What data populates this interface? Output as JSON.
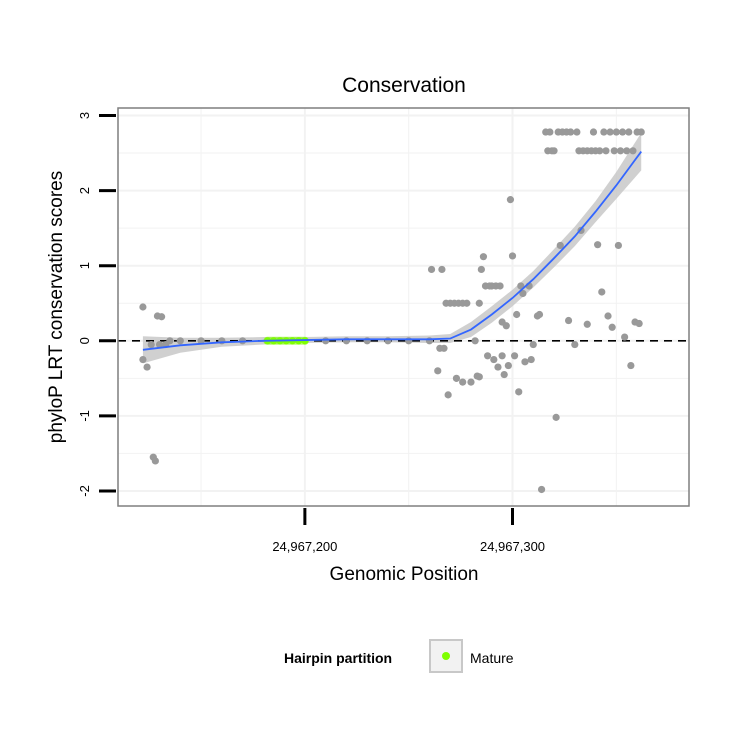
{
  "chart_data": {
    "type": "scatter",
    "title": "Conservation",
    "xlabel": "Genomic Position",
    "ylabel": "phyloP LRT conservation scores",
    "xlim": [
      24967110,
      24967385
    ],
    "ylim": [
      -2.2,
      3.1
    ],
    "x_ticks": [
      {
        "value": 24967200,
        "label": "24,967,200"
      },
      {
        "value": 24967300,
        "label": "24,967,300"
      }
    ],
    "y_ticks": [
      {
        "value": -2,
        "label": "-2"
      },
      {
        "value": -1,
        "label": "-1"
      },
      {
        "value": 0,
        "label": "0"
      },
      {
        "value": 1,
        "label": "1"
      },
      {
        "value": 2,
        "label": "2"
      },
      {
        "value": 3,
        "label": "3"
      }
    ],
    "reference_line": {
      "y": 0,
      "style": "dashed"
    },
    "legend": {
      "title": "Hairpin partition",
      "entries": [
        {
          "label": "Mature",
          "color": "#7fff00"
        }
      ]
    },
    "colors": {
      "points": "#999999",
      "smooth": "#3366ff",
      "ribbon": "#c8c8c8",
      "mature": "#7fff00",
      "panel_border": "#7f7f7f",
      "grid": "#f2f2f2"
    },
    "mature_range": [
      24967180,
      24967202
    ],
    "series": [
      {
        "name": "phyloP scores",
        "points": [
          {
            "x": 24967122,
            "y": 0.45
          },
          {
            "x": 24967124,
            "y": -0.35
          },
          {
            "x": 24967122,
            "y": -0.25
          },
          {
            "x": 24967127,
            "y": -1.55
          },
          {
            "x": 24967128,
            "y": -1.6
          },
          {
            "x": 24967129,
            "y": 0.33
          },
          {
            "x": 24967131,
            "y": 0.32
          },
          {
            "x": 24967133,
            "y": -0.05
          },
          {
            "x": 24967126,
            "y": -0.05
          },
          {
            "x": 24967130,
            "y": -0.05
          },
          {
            "x": 24967135,
            "y": 0
          },
          {
            "x": 24967140,
            "y": 0
          },
          {
            "x": 24967150,
            "y": 0
          },
          {
            "x": 24967160,
            "y": 0
          },
          {
            "x": 24967170,
            "y": 0
          },
          {
            "x": 24967210,
            "y": 0
          },
          {
            "x": 24967220,
            "y": 0
          },
          {
            "x": 24967230,
            "y": 0
          },
          {
            "x": 24967240,
            "y": 0
          },
          {
            "x": 24967250,
            "y": 0
          },
          {
            "x": 24967260,
            "y": 0
          },
          {
            "x": 24967265,
            "y": -0.1
          },
          {
            "x": 24967261,
            "y": 0.95
          },
          {
            "x": 24967266,
            "y": 0.95
          },
          {
            "x": 24967264,
            "y": -0.4
          },
          {
            "x": 24967267,
            "y": -0.1
          },
          {
            "x": 24967268,
            "y": 0.5
          },
          {
            "x": 24967269,
            "y": -0.72
          },
          {
            "x": 24967270,
            "y": 0.5
          },
          {
            "x": 24967272,
            "y": 0.5
          },
          {
            "x": 24967273,
            "y": -0.5
          },
          {
            "x": 24967274,
            "y": 0.5
          },
          {
            "x": 24967276,
            "y": 0.5
          },
          {
            "x": 24967276,
            "y": -0.55
          },
          {
            "x": 24967278,
            "y": 0.5
          },
          {
            "x": 24967280,
            "y": -0.55
          },
          {
            "x": 24967282,
            "y": 0
          },
          {
            "x": 24967283,
            "y": -0.47
          },
          {
            "x": 24967284,
            "y": -0.48
          },
          {
            "x": 24967284,
            "y": 0.5
          },
          {
            "x": 24967285,
            "y": 0.95
          },
          {
            "x": 24967286,
            "y": 1.12
          },
          {
            "x": 24967287,
            "y": 0.73
          },
          {
            "x": 24967288,
            "y": -0.2
          },
          {
            "x": 24967289,
            "y": 0.73
          },
          {
            "x": 24967290,
            "y": 0.73
          },
          {
            "x": 24967291,
            "y": -0.25
          },
          {
            "x": 24967292,
            "y": 0.73
          },
          {
            "x": 24967293,
            "y": -0.35
          },
          {
            "x": 24967294,
            "y": 0.73
          },
          {
            "x": 24967295,
            "y": -0.2
          },
          {
            "x": 24967295,
            "y": 0.25
          },
          {
            "x": 24967296,
            "y": -0.45
          },
          {
            "x": 24967297,
            "y": 0.2
          },
          {
            "x": 24967298,
            "y": -0.33
          },
          {
            "x": 24967299,
            "y": 1.88
          },
          {
            "x": 24967300,
            "y": 1.13
          },
          {
            "x": 24967301,
            "y": -0.2
          },
          {
            "x": 24967302,
            "y": 0.35
          },
          {
            "x": 24967303,
            "y": -0.68
          },
          {
            "x": 24967304,
            "y": 0.73
          },
          {
            "x": 24967305,
            "y": 0.63
          },
          {
            "x": 24967306,
            "y": -0.28
          },
          {
            "x": 24967308,
            "y": 0.73
          },
          {
            "x": 24967309,
            "y": -0.25
          },
          {
            "x": 24967310,
            "y": -0.05
          },
          {
            "x": 24967312,
            "y": 0.33
          },
          {
            "x": 24967313,
            "y": 0.35
          },
          {
            "x": 24967314,
            "y": -1.98
          },
          {
            "x": 24967316,
            "y": 2.78
          },
          {
            "x": 24967317,
            "y": 2.53
          },
          {
            "x": 24967318,
            "y": 2.78
          },
          {
            "x": 24967319,
            "y": 2.53
          },
          {
            "x": 24967320,
            "y": 2.53
          },
          {
            "x": 24967321,
            "y": -1.02
          },
          {
            "x": 24967322,
            "y": 2.78
          },
          {
            "x": 24967323,
            "y": 1.27
          },
          {
            "x": 24967324,
            "y": 2.78
          },
          {
            "x": 24967326,
            "y": 2.78
          },
          {
            "x": 24967327,
            "y": 0.27
          },
          {
            "x": 24967328,
            "y": 2.78
          },
          {
            "x": 24967330,
            "y": -0.05
          },
          {
            "x": 24967331,
            "y": 2.78
          },
          {
            "x": 24967332,
            "y": 2.53
          },
          {
            "x": 24967333,
            "y": 1.47
          },
          {
            "x": 24967334,
            "y": 2.53
          },
          {
            "x": 24967336,
            "y": 0.22
          },
          {
            "x": 24967336,
            "y": 2.53
          },
          {
            "x": 24967338,
            "y": 2.53
          },
          {
            "x": 24967339,
            "y": 2.78
          },
          {
            "x": 24967340,
            "y": 2.53
          },
          {
            "x": 24967341,
            "y": 1.28
          },
          {
            "x": 24967342,
            "y": 2.53
          },
          {
            "x": 24967343,
            "y": 0.65
          },
          {
            "x": 24967344,
            "y": 2.78
          },
          {
            "x": 24967345,
            "y": 2.53
          },
          {
            "x": 24967346,
            "y": 0.33
          },
          {
            "x": 24967347,
            "y": 2.78
          },
          {
            "x": 24967348,
            "y": 0.18
          },
          {
            "x": 24967349,
            "y": 2.53
          },
          {
            "x": 24967350,
            "y": 2.78
          },
          {
            "x": 24967351,
            "y": 1.27
          },
          {
            "x": 24967352,
            "y": 2.53
          },
          {
            "x": 24967353,
            "y": 2.78
          },
          {
            "x": 24967354,
            "y": 0.05
          },
          {
            "x": 24967355,
            "y": 2.53
          },
          {
            "x": 24967356,
            "y": 2.78
          },
          {
            "x": 24967357,
            "y": -0.33
          },
          {
            "x": 24967358,
            "y": 2.53
          },
          {
            "x": 24967359,
            "y": 0.25
          },
          {
            "x": 24967360,
            "y": 2.78
          },
          {
            "x": 24967361,
            "y": 0.23
          },
          {
            "x": 24967362,
            "y": 2.78
          }
        ]
      },
      {
        "name": "Mature",
        "points": [
          {
            "x": 24967182,
            "y": 0
          },
          {
            "x": 24967185,
            "y": 0
          },
          {
            "x": 24967188,
            "y": 0
          },
          {
            "x": 24967191,
            "y": 0
          },
          {
            "x": 24967194,
            "y": 0
          },
          {
            "x": 24967197,
            "y": 0
          },
          {
            "x": 24967200,
            "y": 0
          }
        ]
      },
      {
        "name": "loess smooth",
        "points": [
          {
            "x": 24967122,
            "y": -0.12
          },
          {
            "x": 24967140,
            "y": -0.06
          },
          {
            "x": 24967160,
            "y": -0.02
          },
          {
            "x": 24967180,
            "y": 0
          },
          {
            "x": 24967200,
            "y": 0.01
          },
          {
            "x": 24967220,
            "y": 0.02
          },
          {
            "x": 24967240,
            "y": 0.02
          },
          {
            "x": 24967260,
            "y": 0.02
          },
          {
            "x": 24967270,
            "y": 0.03
          },
          {
            "x": 24967280,
            "y": 0.15
          },
          {
            "x": 24967290,
            "y": 0.35
          },
          {
            "x": 24967300,
            "y": 0.57
          },
          {
            "x": 24967310,
            "y": 0.82
          },
          {
            "x": 24967320,
            "y": 1.1
          },
          {
            "x": 24967330,
            "y": 1.39
          },
          {
            "x": 24967340,
            "y": 1.72
          },
          {
            "x": 24967350,
            "y": 2.07
          },
          {
            "x": 24967362,
            "y": 2.52
          }
        ],
        "ribbon_half_width": [
          0.18,
          0.1,
          0.06,
          0.05,
          0.04,
          0.04,
          0.04,
          0.05,
          0.06,
          0.1,
          0.11,
          0.11,
          0.11,
          0.12,
          0.13,
          0.14,
          0.18,
          0.25
        ]
      }
    ]
  }
}
